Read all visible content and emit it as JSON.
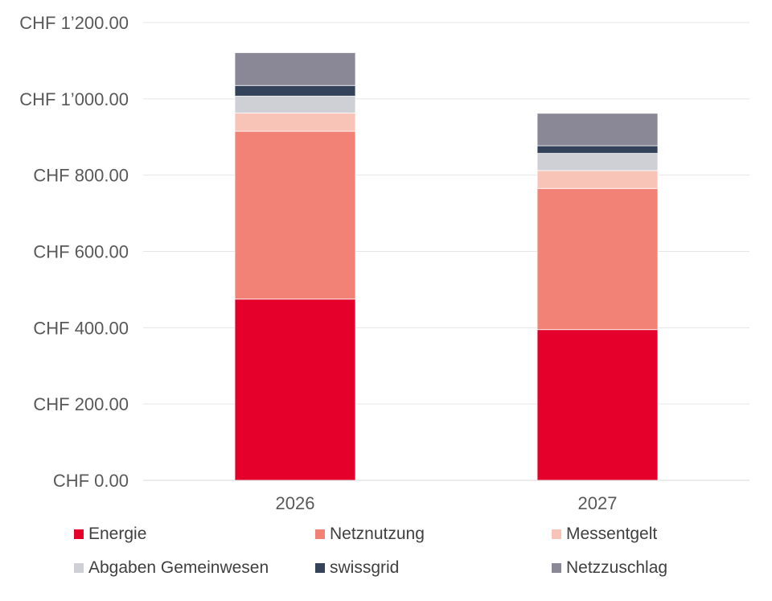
{
  "chart_data": {
    "type": "bar",
    "stacked": true,
    "categories": [
      "2026",
      "2027"
    ],
    "series": [
      {
        "name": "Energie",
        "color": "#E4002B",
        "values": [
          475,
          395
        ]
      },
      {
        "name": "Netznutzung",
        "color": "#F28275",
        "values": [
          440,
          370
        ]
      },
      {
        "name": "Messentgelt",
        "color": "#F9C4B8",
        "values": [
          48,
          47
        ]
      },
      {
        "name": "Abgaben Gemeinwesen",
        "color": "#CFCFD6",
        "values": [
          44,
          45
        ]
      },
      {
        "name": "swissgrid",
        "color": "#34435A",
        "values": [
          28,
          20
        ]
      },
      {
        "name": "Netzzuschlag",
        "color": "#8A8796",
        "values": [
          86,
          85
        ]
      }
    ],
    "ylim": [
      0,
      1200
    ],
    "yticks": [
      0,
      200,
      400,
      600,
      800,
      1000,
      1200
    ],
    "ytick_labels": [
      "CHF 0.00",
      "CHF 200.00",
      "CHF 400.00",
      "CHF 600.00",
      "CHF 800.00",
      "CHF 1’000.00",
      "CHF 1’200.00"
    ],
    "grid": true,
    "legend_position": "bottom"
  }
}
